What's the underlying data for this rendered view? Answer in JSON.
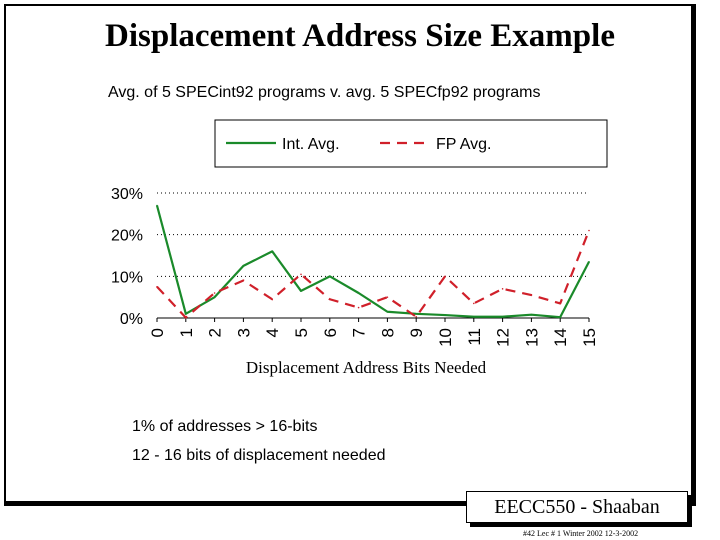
{
  "slide": {
    "title": "Displacement Address Size Example",
    "subtitle": "Avg. of 5 SPECint92 programs v. avg. 5 SPECfp92 programs",
    "notes": [
      "1% of addresses > 16-bits",
      "12 - 16 bits of displacement needed"
    ],
    "badge": "EECC550 - Shaaban",
    "footer": "#42   Lec # 1 Winter 2002  12-3-2002"
  },
  "chart_data": {
    "type": "line",
    "title": "",
    "xlabel": "Displacement Address Bits Needed",
    "ylabel": "",
    "x": [
      0,
      1,
      2,
      3,
      4,
      5,
      6,
      7,
      8,
      9,
      10,
      11,
      12,
      13,
      14,
      15
    ],
    "x_tick_labels": [
      "0",
      "1",
      "2",
      "3",
      "4",
      "5",
      "6",
      "7",
      "8",
      "9",
      "10",
      "11",
      "12",
      "13",
      "14",
      "15"
    ],
    "y_ticks": [
      0,
      10,
      20,
      30
    ],
    "y_tick_labels": [
      "0%",
      "10%",
      "20%",
      "30%"
    ],
    "ylim": [
      0,
      30
    ],
    "grid": "horizontal dotted",
    "legend_position": "top",
    "series": [
      {
        "name": "Int. Avg.",
        "style": "solid",
        "color": "#1a8a2a",
        "values": [
          27,
          1,
          5,
          12.5,
          16,
          6.5,
          10,
          6,
          1.5,
          1,
          0.7,
          0.3,
          0.3,
          0.8,
          0.2,
          13.5
        ]
      },
      {
        "name": "FP Avg.",
        "style": "dashed",
        "color": "#d0202a",
        "values": [
          7.5,
          0.1,
          6,
          9,
          4.5,
          10.5,
          4.5,
          2.5,
          5,
          0.3,
          10,
          3.5,
          7,
          5.5,
          3.5,
          21
        ]
      }
    ]
  }
}
